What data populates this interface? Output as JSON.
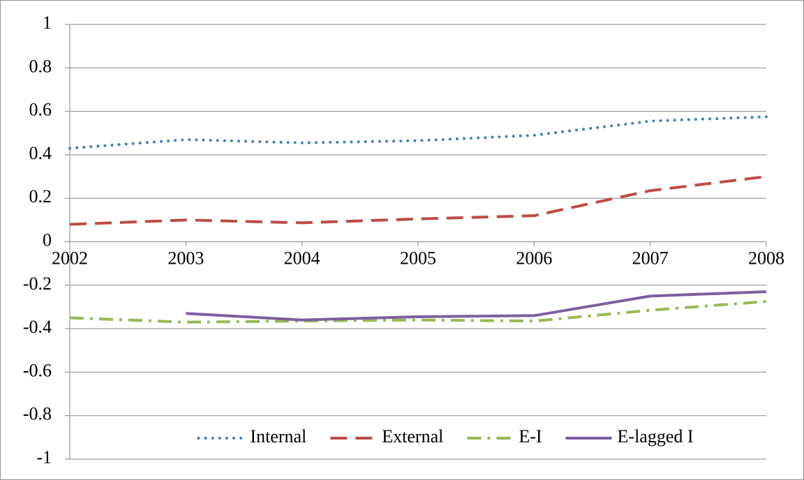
{
  "chart_data": {
    "type": "line",
    "categories": [
      "2002",
      "2003",
      "2004",
      "2005",
      "2006",
      "2007",
      "2008"
    ],
    "series": [
      {
        "name": "Internal",
        "color": "#4a7ebb",
        "style": "dotted",
        "values": [
          0.43,
          0.47,
          0.455,
          0.465,
          0.49,
          0.555,
          0.575
        ]
      },
      {
        "name": "External",
        "color": "#be4b48",
        "style": "dashed",
        "values": [
          0.08,
          0.1,
          0.087,
          0.105,
          0.12,
          0.235,
          0.3
        ]
      },
      {
        "name": "E-I",
        "color": "#98b954",
        "style": "dash-dot",
        "values": [
          -0.35,
          -0.37,
          -0.365,
          -0.36,
          -0.365,
          -0.315,
          -0.275
        ]
      },
      {
        "name": "E-lagged I",
        "color": "#7d5fa0",
        "style": "solid",
        "values": [
          null,
          -0.33,
          -0.36,
          -0.345,
          -0.34,
          -0.25,
          -0.23
        ]
      }
    ],
    "ylim": [
      -1,
      1
    ],
    "yticks": [
      -1,
      -0.8,
      -0.6,
      -0.4,
      -0.2,
      0,
      0.2,
      0.4,
      0.6,
      0.8,
      1
    ],
    "grid": true,
    "legend": "bottom"
  }
}
